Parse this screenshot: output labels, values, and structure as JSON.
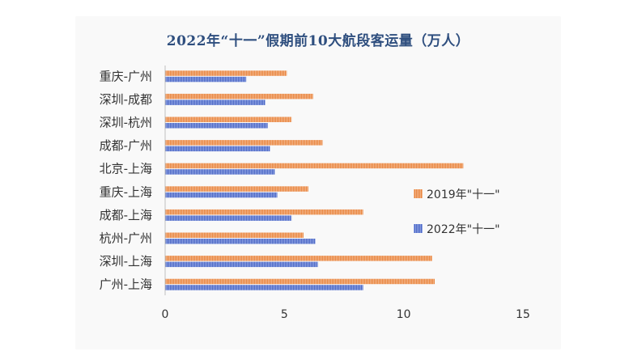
{
  "chart_data": {
    "type": "bar",
    "orientation": "horizontal",
    "title": "2022年“十一”假期前10大航段客运量（万人）",
    "categories": [
      "重庆-广州",
      "深圳-成都",
      "深圳-杭州",
      "成都-广州",
      "北京-上海",
      "重庆-上海",
      "成都-上海",
      "杭州-广州",
      "深圳-上海",
      "广州-上海"
    ],
    "series": [
      {
        "name": "2019年\"十一\"",
        "color": "#ed9a5c",
        "values": [
          5.1,
          6.2,
          5.3,
          6.6,
          12.5,
          6.0,
          8.3,
          5.8,
          11.2,
          11.3
        ]
      },
      {
        "name": "2022年\"十一\"",
        "color": "#5b78d0",
        "values": [
          3.4,
          4.2,
          4.3,
          4.4,
          4.6,
          4.7,
          5.3,
          6.3,
          6.4,
          8.3
        ]
      }
    ],
    "xlim": [
      0,
      15
    ],
    "xticks": [
      0,
      5,
      10,
      15
    ],
    "xlabel": "",
    "ylabel": "",
    "grid": false,
    "legend": "right"
  }
}
